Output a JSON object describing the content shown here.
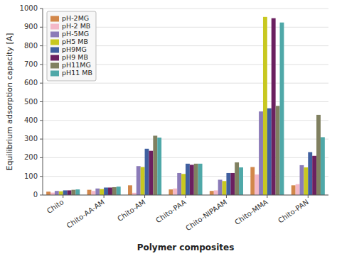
{
  "chart_data": {
    "type": "bar",
    "categories": [
      "Chito",
      "Chito-AA-AM",
      "Chito-AM",
      "Chito-PAA",
      "Chito-NIPAAM",
      "Chito-MMA",
      "Chito-PAN"
    ],
    "series": [
      {
        "name": "pH-2MG",
        "color": "#d2874a",
        "values": [
          18,
          28,
          52,
          30,
          22,
          150,
          52
        ]
      },
      {
        "name": "pH-2 MB",
        "color": "#f4b8c8",
        "values": [
          13,
          22,
          12,
          35,
          25,
          110,
          58
        ]
      },
      {
        "name": "pH-5MG",
        "color": "#8b7bb8",
        "values": [
          22,
          35,
          155,
          118,
          82,
          448,
          160
        ]
      },
      {
        "name": "pH5 MB",
        "color": "#c8c820",
        "values": [
          20,
          32,
          150,
          113,
          75,
          955,
          148
        ]
      },
      {
        "name": "pH9MG",
        "color": "#4060a0",
        "values": [
          25,
          40,
          248,
          168,
          118,
          465,
          230
        ]
      },
      {
        "name": "pH9 MB",
        "color": "#6b2060",
        "values": [
          25,
          40,
          237,
          162,
          118,
          948,
          210
        ]
      },
      {
        "name": "pH11MG",
        "color": "#808060",
        "values": [
          28,
          42,
          318,
          168,
          175,
          478,
          430
        ]
      },
      {
        "name": "pH11 MB",
        "color": "#4fa8a8",
        "values": [
          30,
          45,
          308,
          168,
          148,
          925,
          310
        ]
      }
    ],
    "xlabel": "Polymer composites",
    "ylabel": "Equilibrium adsorption capacity [A]",
    "ylim": [
      0,
      1000
    ],
    "yticks": [
      0,
      100,
      200,
      300,
      400,
      500,
      600,
      700,
      800,
      900,
      1000
    ],
    "grid": true,
    "legend": "upper left"
  }
}
